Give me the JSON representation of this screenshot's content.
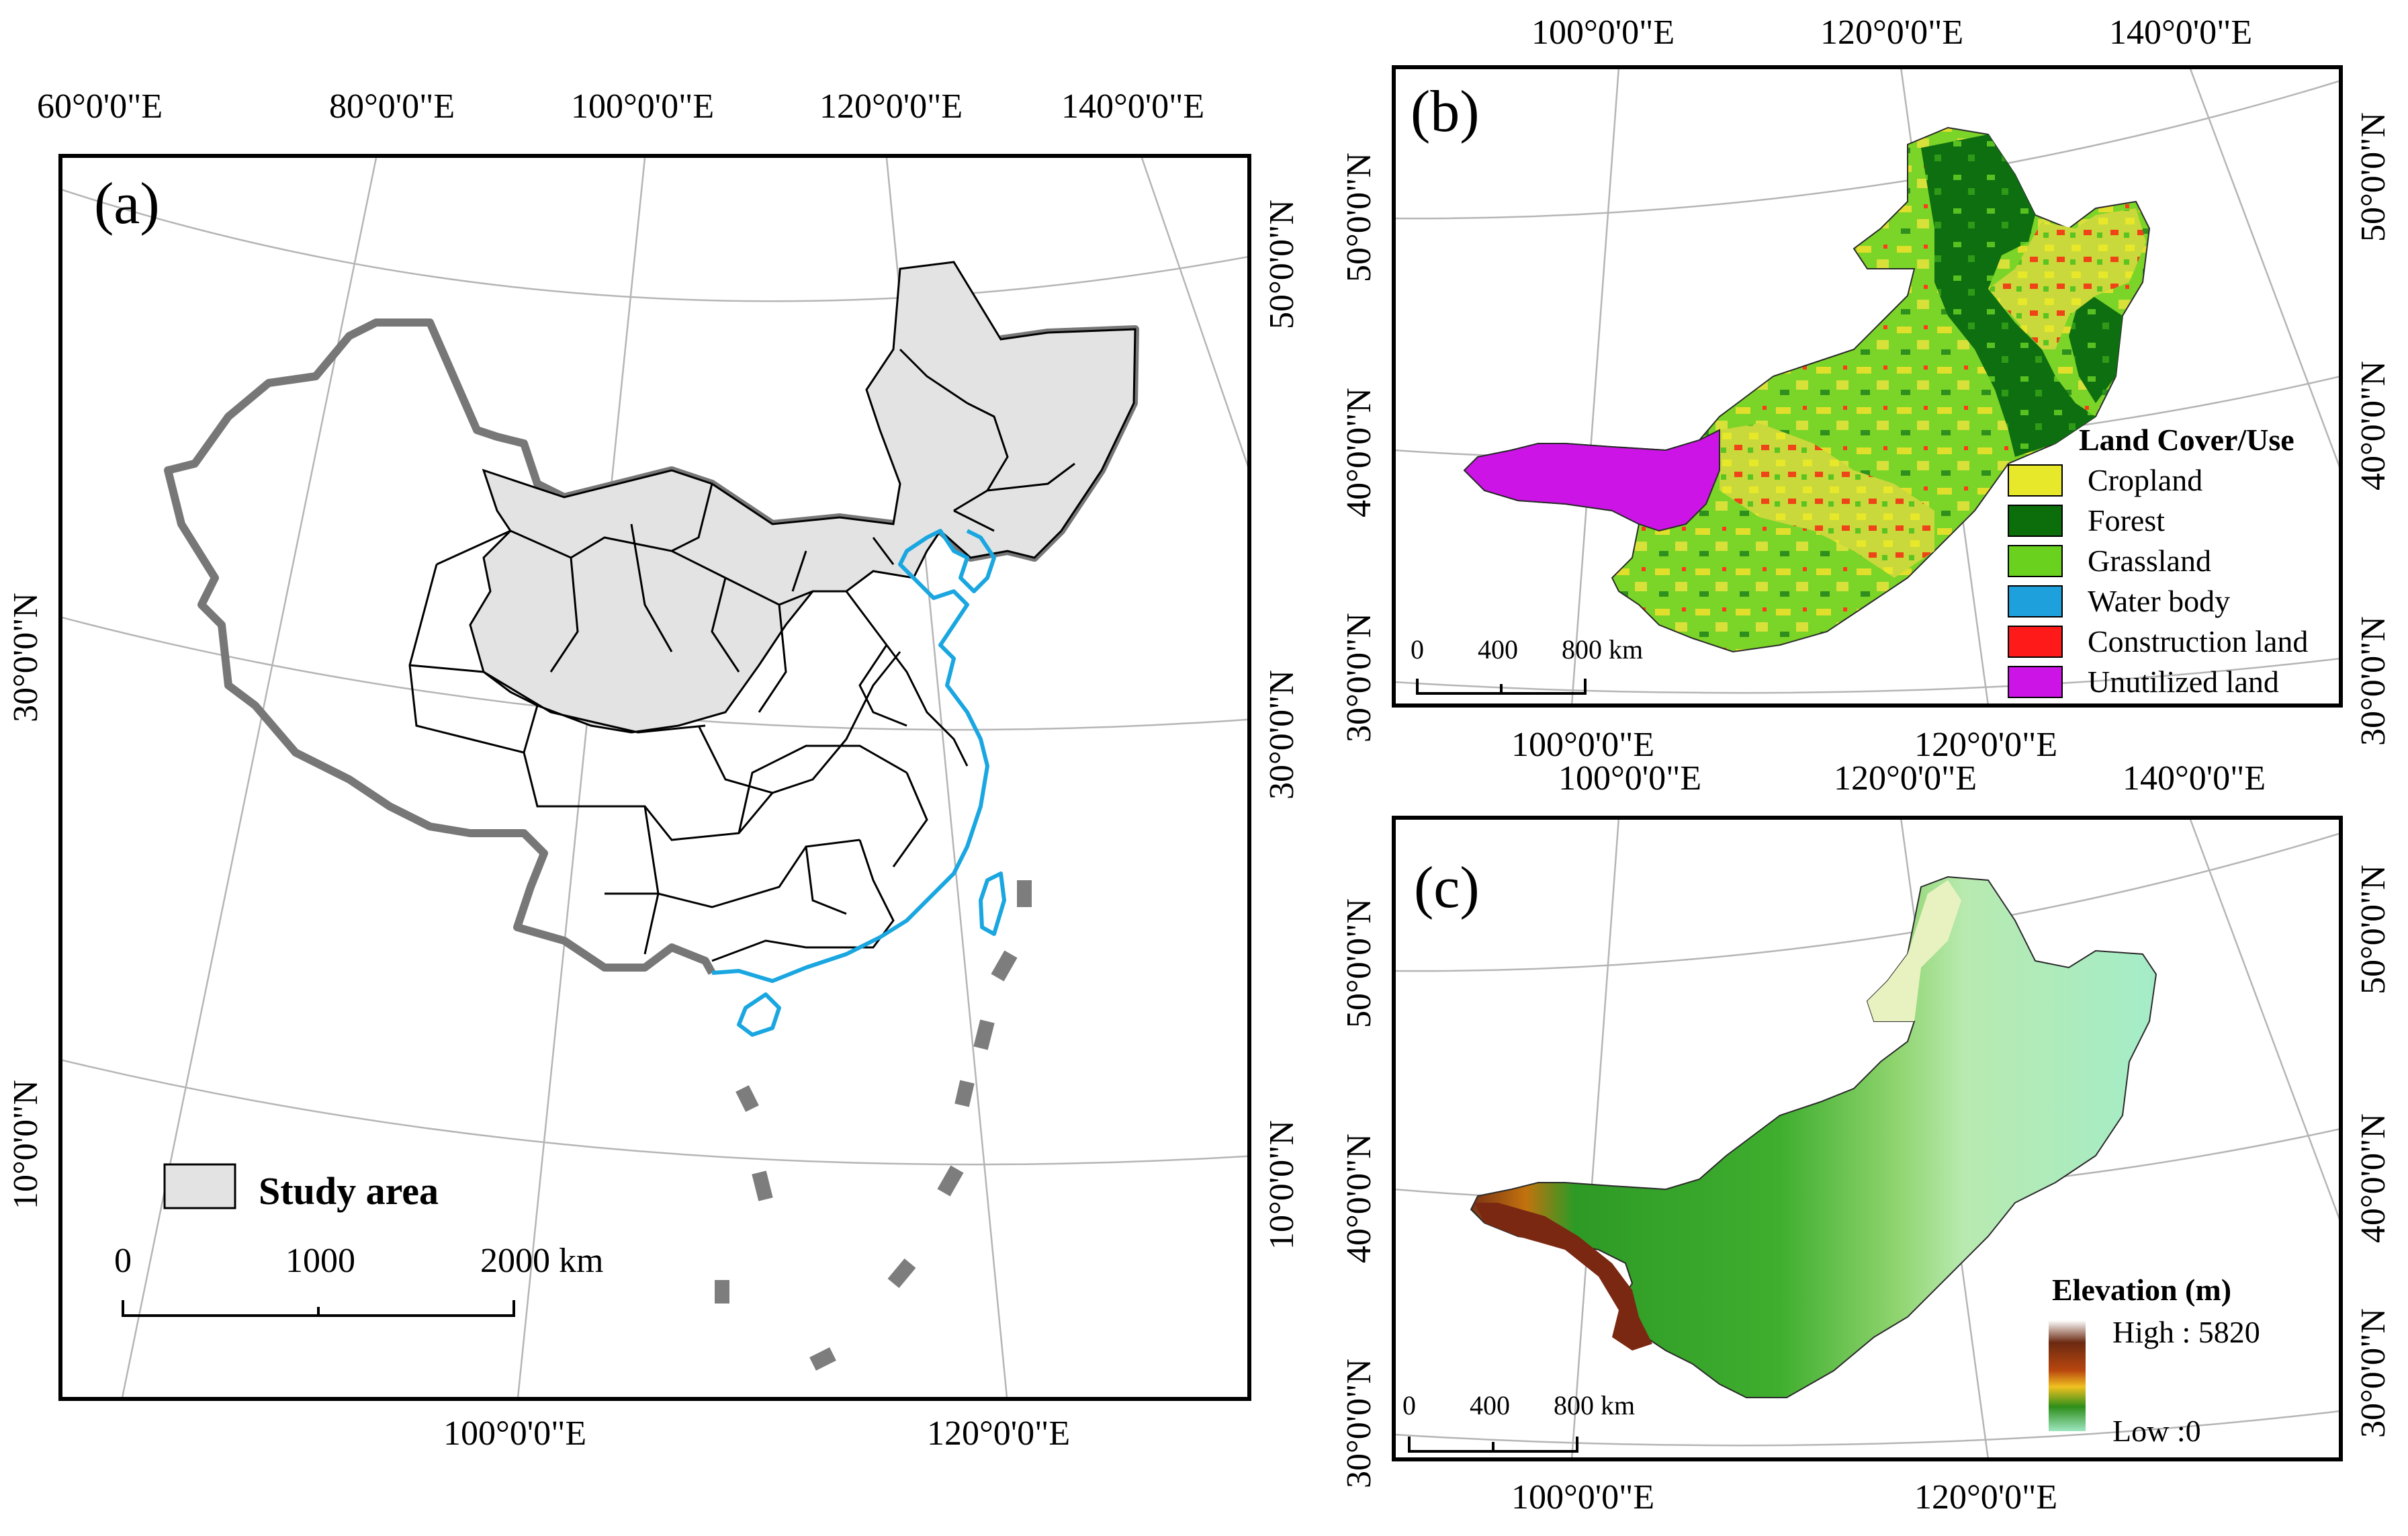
{
  "panel_a": {
    "label": "(a)",
    "top_lon": [
      "60°0'0\"E",
      "80°0'0\"E",
      "100°0'0\"E",
      "120°0'0\"E",
      "140°0'0\"E"
    ],
    "bottom_lon": [
      "100°0'0\"E",
      "120°0'0\"E"
    ],
    "left_lat": [
      "30°0'0\"N",
      "10°0'0\"N"
    ],
    "right_lat": [
      "50°0'0\"N",
      "30°0'0\"N",
      "10°0'0\"N"
    ],
    "legend_label": "Study area",
    "legend_color": "#e3e3e3",
    "scale_ticks": [
      "0",
      "1000",
      "2000 km"
    ],
    "outline_color": "#777777",
    "coast_color": "#1aa6e0"
  },
  "panel_b": {
    "label": "(b)",
    "top_lon": [
      "100°0'0\"E",
      "120°0'0\"E",
      "140°0'0\"E"
    ],
    "bottom_lon": [
      "100°0'0\"E",
      "120°0'0\"E"
    ],
    "left_lat": [
      "50°0'0\"N",
      "40°0'0\"N",
      "30°0'0\"N"
    ],
    "right_lat": [
      "50°0'0\"N",
      "40°0'0\"N",
      "30°0'0\"N"
    ],
    "legend_title": "Land Cover/Use",
    "legend": [
      {
        "label": "Cropland",
        "color": "#e8e82a"
      },
      {
        "label": "Forest",
        "color": "#0b6e0b"
      },
      {
        "label": "Grassland",
        "color": "#6ad21e"
      },
      {
        "label": "Water body",
        "color": "#1ea0dc"
      },
      {
        "label": "Construction land",
        "color": "#ff1a1a"
      },
      {
        "label": "Unutilized land",
        "color": "#cc14e6"
      }
    ],
    "scale_ticks": [
      "0",
      "400",
      "800 km"
    ]
  },
  "panel_c": {
    "label": "(c)",
    "top_lon": [
      "100°0'0\"E",
      "120°0'0\"E",
      "140°0'0\"E"
    ],
    "bottom_lon": [
      "100°0'0\"E",
      "120°0'0\"E"
    ],
    "left_lat": [
      "50°0'0\"N",
      "40°0'0\"N",
      "30°0'0\"N"
    ],
    "right_lat": [
      "50°0'0\"N",
      "40°0'0\"N",
      "30°0'0\"N"
    ],
    "legend_title": "Elevation (m)",
    "legend_high": "High : 5820",
    "legend_low": "Low :0",
    "ramp_colors": [
      "#ffffff",
      "#6b2a12",
      "#b8460e",
      "#f0c020",
      "#2e8f1a",
      "#9ee6c0"
    ],
    "scale_ticks": [
      "0",
      "400",
      "800 km"
    ]
  }
}
